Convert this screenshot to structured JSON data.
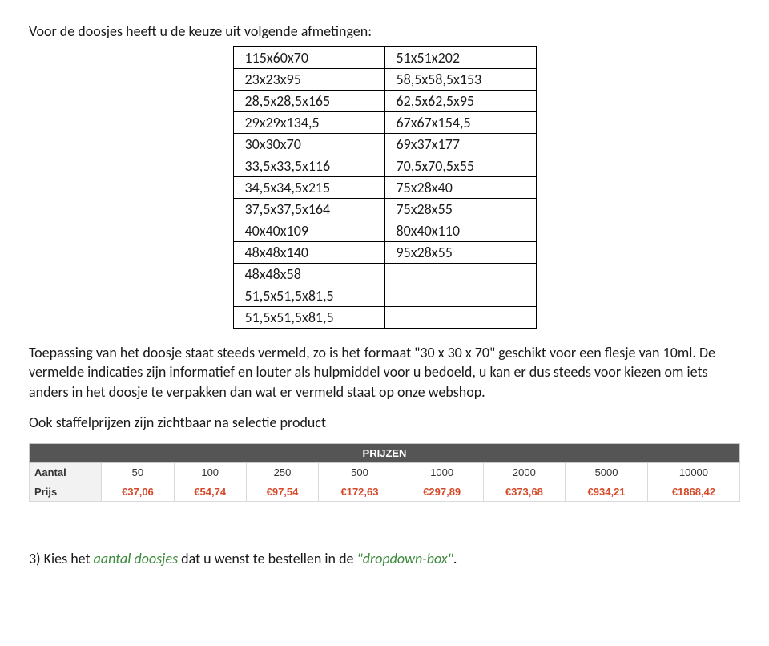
{
  "intro_text": "Voor de doosjes heeft u de keuze uit volgende afmetingen:",
  "dims_table": {
    "rows": [
      [
        "115x60x70",
        "51x51x202"
      ],
      [
        "23x23x95",
        "58,5x58,5x153"
      ],
      [
        "28,5x28,5x165",
        "62,5x62,5x95"
      ],
      [
        "29x29x134,5",
        "67x67x154,5"
      ],
      [
        "30x30x70",
        "69x37x177"
      ],
      [
        "33,5x33,5x116",
        "70,5x70,5x55"
      ],
      [
        "34,5x34,5x215",
        "75x28x40"
      ],
      [
        "37,5x37,5x164",
        "75x28x55"
      ],
      [
        "40x40x109",
        "80x40x110"
      ],
      [
        "48x48x140",
        "95x28x55"
      ],
      [
        "48x48x58",
        ""
      ],
      [
        "51,5x51,5x81,5",
        ""
      ],
      [
        "51,5x51,5x81,5",
        ""
      ]
    ]
  },
  "body_paragraph": "Toepassing van het doosje staat steeds vermeld, zo is het formaat \"30 x 30 x 70\" geschikt voor een flesje van 10ml. De vermelde indicaties zijn informatief en louter als hulpmiddel voor u bedoeld, u kan er dus steeds voor kiezen om iets anders in het doosje te verpakken dan wat er vermeld staat op onze webshop.",
  "staffel_text": "Ook staffelprijzen zijn zichtbaar na selectie product",
  "prices_table": {
    "header_title": "PRIJZEN",
    "row_label_qty": "Aantal",
    "row_label_price": "Prijs",
    "quantities": [
      "50",
      "100",
      "250",
      "500",
      "1000",
      "2000",
      "5000",
      "10000"
    ],
    "prices": [
      "€37,06",
      "€54,74",
      "€97,54",
      "€172,63",
      "€297,89",
      "€373,68",
      "€934,21",
      "€1868,42"
    ],
    "header_bg": "#555555",
    "header_fg": "#ffffff",
    "price_color": "#d44a2a",
    "border_color": "#d9d9d9"
  },
  "step3": {
    "prefix": "3) Kies het ",
    "link1": "aantal doosjes",
    "mid": " dat u wenst te bestellen in de ",
    "link2": "\"dropdown-box\"",
    "suffix": "."
  }
}
